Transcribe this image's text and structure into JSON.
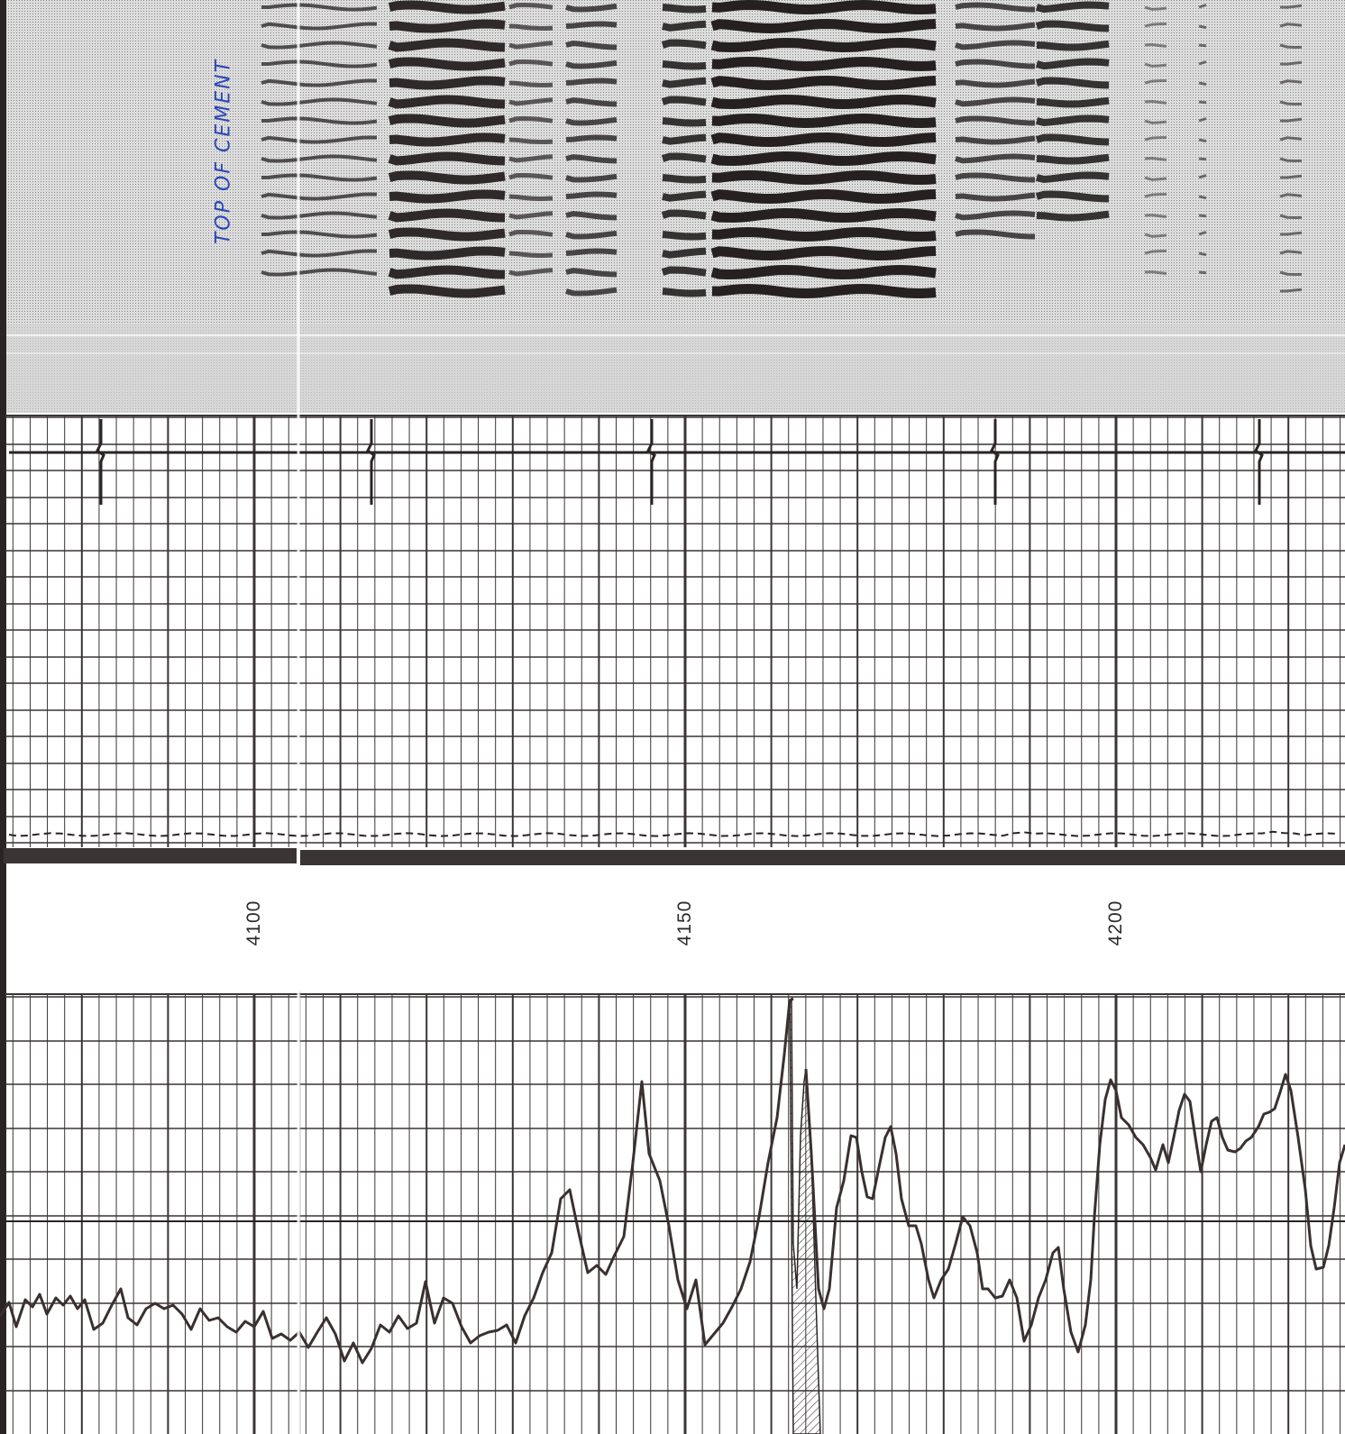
{
  "depth_labels": [
    {
      "id": "depth-4100",
      "text": "4100",
      "depth": 4100
    },
    {
      "id": "depth-4150",
      "text": "4150",
      "depth": 4150
    },
    {
      "id": "depth-4200",
      "text": "4200",
      "depth": 4200
    }
  ],
  "annotation": {
    "text": "TOP OF CEMENT"
  },
  "colors": {
    "ink": "#2b2424",
    "grid": "#3a3434",
    "vdl_background": "#c9c9c9",
    "annotation_ink": "#2b47b8",
    "depth_band": "#3b3434"
  },
  "tracks": [
    {
      "name": "vdl-variable-density-track",
      "content": "waveform image"
    },
    {
      "name": "amplitude-track",
      "content": "grid with collar-locator spikes and dashed curve"
    },
    {
      "name": "depth-column",
      "content": "depth numbers"
    },
    {
      "name": "log-curve-track",
      "content": "solid curve with hatched fill"
    }
  ]
}
